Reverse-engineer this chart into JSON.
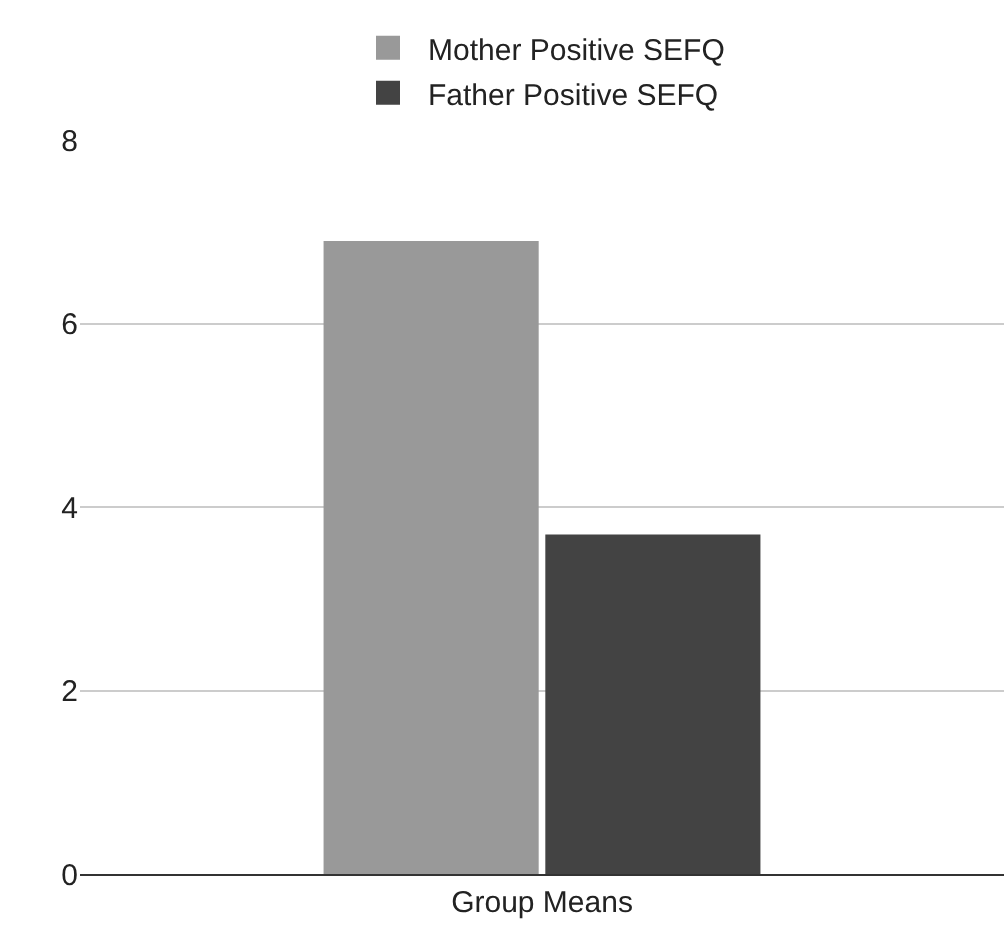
{
  "chart_data": {
    "type": "bar",
    "categories": [
      "Group Means"
    ],
    "series": [
      {
        "name": "Mother Positive SEFQ",
        "color": "#999999",
        "values": [
          6.9
        ]
      },
      {
        "name": "Father Positive SEFQ",
        "color": "#434343",
        "values": [
          3.7
        ]
      }
    ],
    "ylim": [
      0,
      8
    ],
    "yticks": [
      0,
      2,
      4,
      6,
      8
    ],
    "grid": "y",
    "legend": "top"
  }
}
